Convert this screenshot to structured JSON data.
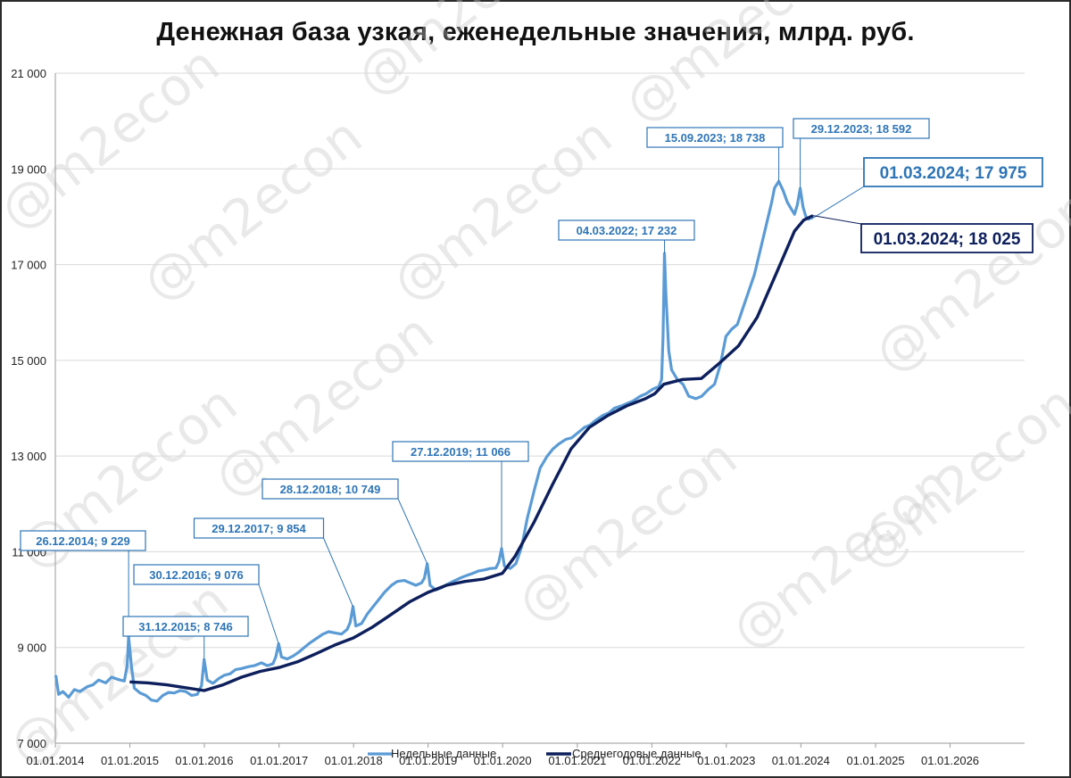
{
  "title": "Денежная база узкая, еженедельные значения, млрд. руб.",
  "watermark": "@m2econ",
  "chart_data": {
    "type": "line",
    "title": "Денежная база узкая, еженедельные значения, млрд. руб.",
    "ylim": [
      7000,
      21000
    ],
    "yticks": [
      7000,
      9000,
      11000,
      13000,
      15000,
      17000,
      19000,
      21000
    ],
    "ytick_labels": [
      "7 000",
      "9 000",
      "11 000",
      "13 000",
      "15 000",
      "17 000",
      "19 000",
      "21 000"
    ],
    "xlim": [
      "2014-01-01",
      "2027-01-01"
    ],
    "xticks": [
      "2014-01-01",
      "2015-01-01",
      "2016-01-01",
      "2017-01-01",
      "2018-01-01",
      "2019-01-01",
      "2020-01-01",
      "2021-01-01",
      "2022-01-01",
      "2023-01-01",
      "2024-01-01",
      "2025-01-01",
      "2026-01-01"
    ],
    "xtick_labels": [
      "01.01.2014",
      "01.01.2015",
      "01.01.2016",
      "01.01.2017",
      "01.01.2018",
      "01.01.2019",
      "01.01.2020",
      "01.01.2021",
      "01.01.2022",
      "01.01.2023",
      "01.01.2024",
      "01.01.2025",
      "01.01.2026"
    ],
    "grid": true,
    "legend_position": "bottom",
    "colors": {
      "weekly": "#5b9bd5",
      "avg": "#0d1f5c",
      "annotation_weekly": "#2e75b6",
      "annotation_avg": "#0d1f5c"
    },
    "series": [
      {
        "name": "Недельные данные",
        "points": [
          [
            "2014-01-03",
            8420
          ],
          [
            "2014-01-17",
            8020
          ],
          [
            "2014-02-07",
            8080
          ],
          [
            "2014-03-07",
            7960
          ],
          [
            "2014-04-04",
            8120
          ],
          [
            "2014-05-02",
            8080
          ],
          [
            "2014-06-06",
            8180
          ],
          [
            "2014-07-04",
            8220
          ],
          [
            "2014-08-01",
            8320
          ],
          [
            "2014-09-05",
            8260
          ],
          [
            "2014-10-03",
            8380
          ],
          [
            "2014-11-07",
            8330
          ],
          [
            "2014-12-05",
            8300
          ],
          [
            "2014-12-19",
            8620
          ],
          [
            "2014-12-26",
            9229
          ],
          [
            "2015-01-09",
            8600
          ],
          [
            "2015-01-23",
            8150
          ],
          [
            "2015-02-20",
            8050
          ],
          [
            "2015-03-20",
            8000
          ],
          [
            "2015-04-17",
            7900
          ],
          [
            "2015-05-15",
            7880
          ],
          [
            "2015-06-12",
            8000
          ],
          [
            "2015-07-10",
            8060
          ],
          [
            "2015-08-07",
            8050
          ],
          [
            "2015-09-04",
            8100
          ],
          [
            "2015-10-02",
            8080
          ],
          [
            "2015-10-30",
            8000
          ],
          [
            "2015-11-27",
            8020
          ],
          [
            "2015-12-18",
            8200
          ],
          [
            "2015-12-31",
            8746
          ],
          [
            "2016-01-15",
            8320
          ],
          [
            "2016-02-12",
            8250
          ],
          [
            "2016-03-11",
            8350
          ],
          [
            "2016-04-08",
            8420
          ],
          [
            "2016-05-06",
            8450
          ],
          [
            "2016-06-03",
            8540
          ],
          [
            "2016-07-01",
            8560
          ],
          [
            "2016-08-05",
            8600
          ],
          [
            "2016-09-02",
            8620
          ],
          [
            "2016-10-07",
            8680
          ],
          [
            "2016-11-04",
            8620
          ],
          [
            "2016-12-02",
            8660
          ],
          [
            "2016-12-16",
            8800
          ],
          [
            "2016-12-30",
            9076
          ],
          [
            "2017-01-13",
            8800
          ],
          [
            "2017-02-10",
            8760
          ],
          [
            "2017-03-10",
            8820
          ],
          [
            "2017-04-07",
            8900
          ],
          [
            "2017-05-05",
            9000
          ],
          [
            "2017-06-02",
            9100
          ],
          [
            "2017-07-07",
            9200
          ],
          [
            "2017-08-04",
            9280
          ],
          [
            "2017-09-01",
            9330
          ],
          [
            "2017-10-06",
            9300
          ],
          [
            "2017-11-03",
            9280
          ],
          [
            "2017-12-01",
            9380
          ],
          [
            "2017-12-15",
            9520
          ],
          [
            "2017-12-29",
            9854
          ],
          [
            "2018-01-12",
            9450
          ],
          [
            "2018-02-09",
            9500
          ],
          [
            "2018-03-09",
            9700
          ],
          [
            "2018-04-06",
            9850
          ],
          [
            "2018-05-04",
            10000
          ],
          [
            "2018-06-01",
            10150
          ],
          [
            "2018-07-06",
            10300
          ],
          [
            "2018-08-03",
            10380
          ],
          [
            "2018-09-07",
            10400
          ],
          [
            "2018-10-05",
            10350
          ],
          [
            "2018-11-02",
            10300
          ],
          [
            "2018-11-30",
            10350
          ],
          [
            "2018-12-14",
            10450
          ],
          [
            "2018-12-28",
            10749
          ],
          [
            "2019-01-11",
            10300
          ],
          [
            "2019-02-08",
            10200
          ],
          [
            "2019-03-08",
            10250
          ],
          [
            "2019-04-05",
            10320
          ],
          [
            "2019-05-03",
            10380
          ],
          [
            "2019-06-07",
            10450
          ],
          [
            "2019-07-05",
            10500
          ],
          [
            "2019-08-02",
            10540
          ],
          [
            "2019-09-06",
            10600
          ],
          [
            "2019-10-04",
            10620
          ],
          [
            "2019-11-01",
            10650
          ],
          [
            "2019-11-29",
            10660
          ],
          [
            "2019-12-13",
            10780
          ],
          [
            "2019-12-27",
            11066
          ],
          [
            "2020-01-10",
            10700
          ],
          [
            "2020-02-07",
            10650
          ],
          [
            "2020-03-06",
            10750
          ],
          [
            "2020-04-03",
            11100
          ],
          [
            "2020-05-01",
            11700
          ],
          [
            "2020-06-05",
            12300
          ],
          [
            "2020-07-03",
            12750
          ],
          [
            "2020-08-07",
            13000
          ],
          [
            "2020-09-04",
            13150
          ],
          [
            "2020-10-02",
            13250
          ],
          [
            "2020-11-06",
            13350
          ],
          [
            "2020-12-04",
            13380
          ],
          [
            "2021-01-08",
            13500
          ],
          [
            "2021-02-05",
            13600
          ],
          [
            "2021-03-05",
            13650
          ],
          [
            "2021-04-02",
            13750
          ],
          [
            "2021-05-07",
            13850
          ],
          [
            "2021-06-04",
            13900
          ],
          [
            "2021-07-02",
            14000
          ],
          [
            "2021-08-06",
            14050
          ],
          [
            "2021-09-03",
            14100
          ],
          [
            "2021-10-01",
            14150
          ],
          [
            "2021-11-05",
            14250
          ],
          [
            "2021-12-03",
            14300
          ],
          [
            "2022-01-07",
            14400
          ],
          [
            "2022-02-04",
            14450
          ],
          [
            "2022-02-18",
            14600
          ],
          [
            "2022-02-25",
            15500
          ],
          [
            "2022-03-04",
            17232
          ],
          [
            "2022-03-11",
            16400
          ],
          [
            "2022-03-25",
            15200
          ],
          [
            "2022-04-08",
            14800
          ],
          [
            "2022-05-06",
            14600
          ],
          [
            "2022-06-03",
            14500
          ],
          [
            "2022-07-01",
            14250
          ],
          [
            "2022-08-05",
            14200
          ],
          [
            "2022-09-02",
            14250
          ],
          [
            "2022-10-07",
            14400
          ],
          [
            "2022-11-04",
            14500
          ],
          [
            "2022-12-02",
            14900
          ],
          [
            "2022-12-30",
            15500
          ],
          [
            "2023-01-27",
            15650
          ],
          [
            "2023-02-24",
            15750
          ],
          [
            "2023-03-24",
            16100
          ],
          [
            "2023-04-21",
            16450
          ],
          [
            "2023-05-19",
            16800
          ],
          [
            "2023-06-16",
            17300
          ],
          [
            "2023-07-14",
            17800
          ],
          [
            "2023-08-11",
            18300
          ],
          [
            "2023-08-25",
            18600
          ],
          [
            "2023-09-15",
            18738
          ],
          [
            "2023-10-06",
            18550
          ],
          [
            "2023-10-27",
            18300
          ],
          [
            "2023-11-17",
            18150
          ],
          [
            "2023-12-01",
            18050
          ],
          [
            "2023-12-15",
            18250
          ],
          [
            "2023-12-29",
            18592
          ],
          [
            "2024-01-12",
            18200
          ],
          [
            "2024-01-26",
            18000
          ],
          [
            "2024-02-09",
            17950
          ],
          [
            "2024-02-23",
            17980
          ],
          [
            "2024-03-01",
            17975
          ]
        ]
      },
      {
        "name": "Среднегодовые данные",
        "points": [
          [
            "2014-12-31",
            8280
          ],
          [
            "2015-04-01",
            8260
          ],
          [
            "2015-07-01",
            8220
          ],
          [
            "2015-10-01",
            8160
          ],
          [
            "2015-12-31",
            8100
          ],
          [
            "2016-04-01",
            8220
          ],
          [
            "2016-07-01",
            8380
          ],
          [
            "2016-10-01",
            8500
          ],
          [
            "2016-12-31",
            8580
          ],
          [
            "2017-04-01",
            8700
          ],
          [
            "2017-07-01",
            8870
          ],
          [
            "2017-10-01",
            9050
          ],
          [
            "2017-12-31",
            9200
          ],
          [
            "2018-04-01",
            9420
          ],
          [
            "2018-07-01",
            9680
          ],
          [
            "2018-10-01",
            9950
          ],
          [
            "2018-12-31",
            10150
          ],
          [
            "2019-04-01",
            10300
          ],
          [
            "2019-07-01",
            10380
          ],
          [
            "2019-10-01",
            10430
          ],
          [
            "2019-12-31",
            10550
          ],
          [
            "2020-03-01",
            10900
          ],
          [
            "2020-06-01",
            11600
          ],
          [
            "2020-09-01",
            12400
          ],
          [
            "2020-12-01",
            13150
          ],
          [
            "2021-03-01",
            13600
          ],
          [
            "2021-06-01",
            13850
          ],
          [
            "2021-09-01",
            14050
          ],
          [
            "2021-12-01",
            14200
          ],
          [
            "2022-01-15",
            14300
          ],
          [
            "2022-03-01",
            14500
          ],
          [
            "2022-06-01",
            14600
          ],
          [
            "2022-09-01",
            14620
          ],
          [
            "2022-12-01",
            14950
          ],
          [
            "2023-03-01",
            15300
          ],
          [
            "2023-06-01",
            15900
          ],
          [
            "2023-09-01",
            16800
          ],
          [
            "2023-12-01",
            17700
          ],
          [
            "2024-01-15",
            17930
          ],
          [
            "2024-03-01",
            18025
          ]
        ]
      }
    ],
    "annotations": [
      {
        "label": "26.12.2014; 9 229",
        "x": "2014-12-26",
        "y": 9229,
        "series": "weekly"
      },
      {
        "label": "31.12.2015; 8 746",
        "x": "2015-12-31",
        "y": 8746,
        "series": "weekly"
      },
      {
        "label": "30.12.2016; 9 076",
        "x": "2016-12-30",
        "y": 9076,
        "series": "weekly"
      },
      {
        "label": "29.12.2017; 9 854",
        "x": "2017-12-29",
        "y": 9854,
        "series": "weekly"
      },
      {
        "label": "28.12.2018; 10 749",
        "x": "2018-12-28",
        "y": 10749,
        "series": "weekly"
      },
      {
        "label": "27.12.2019; 11 066",
        "x": "2019-12-27",
        "y": 11066,
        "series": "weekly"
      },
      {
        "label": "04.03.2022; 17 232",
        "x": "2022-03-04",
        "y": 17232,
        "series": "weekly"
      },
      {
        "label": "15.09.2023; 18 738",
        "x": "2023-09-15",
        "y": 18738,
        "series": "weekly"
      },
      {
        "label": "29.12.2023; 18 592",
        "x": "2023-12-29",
        "y": 18592,
        "series": "weekly"
      },
      {
        "label": "01.03.2024; 17 975",
        "x": "2024-03-01",
        "y": 17975,
        "series": "weekly",
        "large": true
      },
      {
        "label": "01.03.2024; 18 025",
        "x": "2024-03-01",
        "y": 18025,
        "series": "avg",
        "large": true
      }
    ]
  }
}
